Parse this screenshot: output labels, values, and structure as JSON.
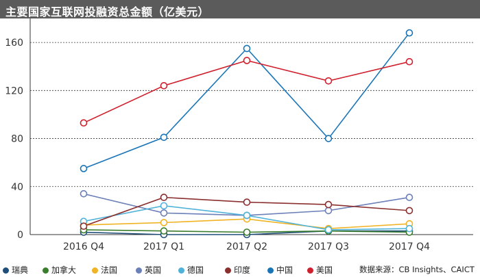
{
  "title": "主要国家互联网投融资总金额（亿美元）",
  "source": "数据来源：CB Insights、CAICT",
  "chart_data": {
    "type": "line",
    "categories": [
      "2016 Q4",
      "2017 Q1",
      "2017 Q2",
      "2017 Q3",
      "2017 Q4"
    ],
    "ylim": [
      0,
      180
    ],
    "yticks": [
      0,
      40,
      80,
      120,
      160
    ],
    "grid": true,
    "legend_position": "bottom",
    "series": [
      {
        "name": "瑞典",
        "color": "#1f4e79",
        "values": [
          2,
          0,
          0,
          3,
          3
        ]
      },
      {
        "name": "加拿大",
        "color": "#3a7d2c",
        "values": [
          4,
          3,
          2,
          3,
          2
        ]
      },
      {
        "name": "法国",
        "color": "#f0b323",
        "values": [
          8,
          10,
          13,
          5,
          9
        ]
      },
      {
        "name": "英国",
        "color": "#6b7fb8",
        "values": [
          34,
          18,
          16,
          20,
          31
        ]
      },
      {
        "name": "德国",
        "color": "#4fb3d9",
        "values": [
          11,
          24,
          16,
          4,
          5
        ]
      },
      {
        "name": "印度",
        "color": "#8b2e2e",
        "values": [
          7,
          31,
          27,
          25,
          20
        ]
      },
      {
        "name": "中国",
        "color": "#1a75b8",
        "values": [
          55,
          81,
          155,
          80,
          168
        ]
      },
      {
        "name": "美国",
        "color": "#d0202e",
        "values": [
          93,
          124,
          145,
          128,
          144
        ]
      }
    ]
  }
}
